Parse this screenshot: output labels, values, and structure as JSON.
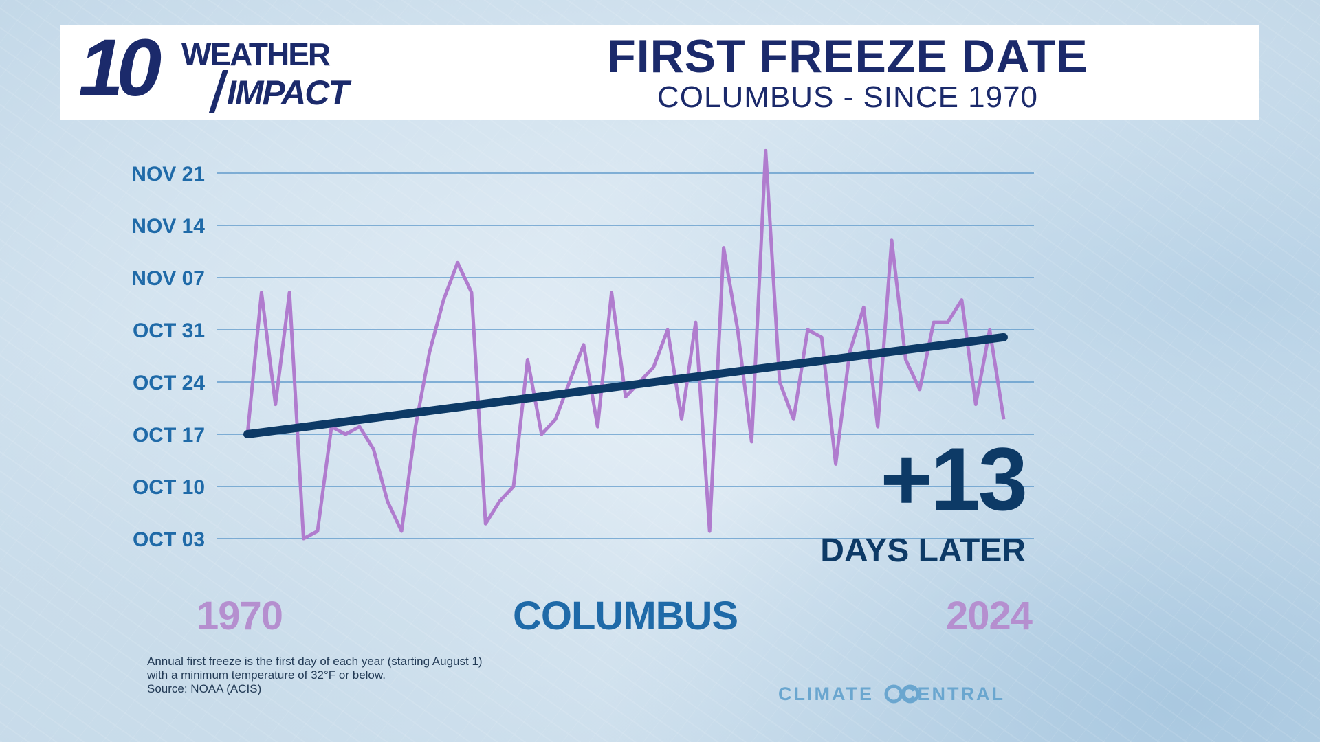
{
  "header": {
    "logo_number": "10",
    "logo_line1": "WEATHER",
    "logo_line2": "IMPACT",
    "title": "FIRST FREEZE DATE",
    "subtitle": "COLUMBUS - SINCE 1970"
  },
  "colors": {
    "navy": "#1b2a6b",
    "freeze_line": "#b07cce",
    "trend_line": "#0d3a66",
    "axis_text": "#1f6aa8",
    "gridline": "#4a8cc4"
  },
  "chart_data": {
    "type": "line",
    "y_ticks": [
      "NOV 21",
      "NOV 14",
      "NOV 07",
      "OCT 31",
      "OCT 24",
      "OCT 17",
      "OCT 10",
      "OCT 03"
    ],
    "y_tick_dates": [
      "11-21",
      "11-14",
      "11-07",
      "10-31",
      "10-24",
      "10-17",
      "10-10",
      "10-03"
    ],
    "ylim": [
      "10-03",
      "11-21"
    ],
    "x_labels": {
      "start": "1970",
      "end": "2024"
    },
    "grid": true,
    "series": [
      {
        "kind": "first_freeze_date",
        "x": [
          1970,
          1971,
          1972,
          1973,
          1974,
          1975,
          1976,
          1977,
          1978,
          1979,
          1980,
          1981,
          1982,
          1983,
          1984,
          1985,
          1986,
          1987,
          1988,
          1989,
          1990,
          1991,
          1992,
          1993,
          1994,
          1995,
          1996,
          1997,
          1998,
          1999,
          2000,
          2001,
          2002,
          2003,
          2004,
          2005,
          2006,
          2007,
          2008,
          2009,
          2010,
          2011,
          2012,
          2013,
          2014,
          2015,
          2016,
          2017,
          2018,
          2019,
          2020,
          2021,
          2022,
          2023,
          2024
        ],
        "y": [
          "10-17",
          "11-05",
          "10-21",
          "11-05",
          "10-03",
          "10-04",
          "10-18",
          "10-17",
          "10-18",
          "10-15",
          "10-08",
          "10-04",
          "10-18",
          "10-28",
          "11-04",
          "11-09",
          "11-05",
          "10-05",
          "10-08",
          "10-10",
          "10-27",
          "10-17",
          "10-19",
          "10-24",
          "10-29",
          "10-18",
          "11-05",
          "10-22",
          "10-24",
          "10-26",
          "10-31",
          "10-19",
          "11-01",
          "10-04",
          "11-11",
          "10-31",
          "10-16",
          "11-24",
          "10-24",
          "10-19",
          "10-31",
          "10-30",
          "10-13",
          "10-28",
          "11-03",
          "10-18",
          "11-12",
          "10-27",
          "10-23",
          "11-01",
          "11-01",
          "11-04",
          "10-21",
          "10-31",
          "10-19"
        ]
      },
      {
        "kind": "trend",
        "x": [
          1970,
          2024
        ],
        "y": [
          "10-17",
          "10-30"
        ]
      }
    ],
    "change_value": "+13",
    "change_label": "DAYS LATER",
    "city_label": "COLUMBUS"
  },
  "footnote": {
    "line1": "Annual first freeze is the first day of each year (starting August 1)",
    "line2": "with a minimum temperature of 32°F or below.",
    "line3": "Source: NOAA (ACIS)"
  },
  "credit": {
    "left": "CLIMATE",
    "right": "CENTRAL",
    "icon": "climate-central-logo-icon"
  }
}
